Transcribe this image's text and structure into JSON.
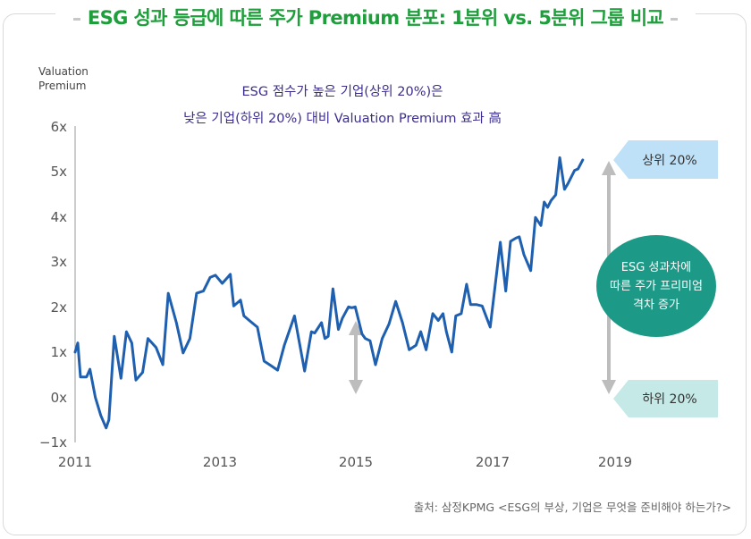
{
  "title": "ESG 성과 등급에 따른 주가 Premium 분포: 1분위 vs. 5분위 그룹 비교",
  "chart_data": {
    "type": "line",
    "title": "ESG 성과 등급에 따른 주가 Premium 분포: 1분위 vs. 5분위 그룹 비교",
    "ylabel_lines": [
      "Valuation",
      "Premium"
    ],
    "ylim": [
      -1,
      6
    ],
    "xlim": [
      2011,
      2019
    ],
    "y_ticks": [
      "−1x",
      "0x",
      "1x",
      "2x",
      "3x",
      "4x",
      "5x",
      "6x"
    ],
    "x_ticks": [
      "2011",
      "2013",
      "2015",
      "2017",
      "2019"
    ],
    "grid": false,
    "annotation_lines": [
      "ESG 점수가 높은 기업(상위 20%)은",
      "낮은 기업(하위 20%) 대비 Valuation Premium 효과 高"
    ],
    "label_top": "상위 20%",
    "label_bottom": "하위 20%",
    "circle_lines": [
      "ESG 성과차에",
      "따른 주가 프리미엄",
      "격차 증가"
    ],
    "series": [
      {
        "x": [
          2011.0,
          2011.04,
          2011.08,
          2011.17,
          2011.22,
          2011.3,
          2011.38,
          2011.46,
          2011.5,
          2011.58,
          2011.68,
          2011.76,
          2011.84,
          2011.9,
          2012.0,
          2012.08,
          2012.2,
          2012.3,
          2012.38,
          2012.5,
          2012.6,
          2012.7,
          2012.8,
          2012.9,
          2013.0,
          2013.08,
          2013.18,
          2013.3,
          2013.35,
          2013.45,
          2013.5,
          2013.58,
          2013.7,
          2013.8,
          2013.9,
          2014.0,
          2014.1,
          2014.25,
          2014.4,
          2014.5,
          2014.55,
          2014.65,
          2014.7,
          2014.75,
          2014.82,
          2014.9,
          2014.96,
          2015.05,
          2015.1,
          2015.15,
          2015.2,
          2015.25,
          2015.3,
          2015.37,
          2015.45,
          2015.55,
          2015.65,
          2015.75,
          2015.85,
          2015.95,
          2016.05,
          2016.12,
          2016.2,
          2016.3,
          2016.38,
          2016.45,
          2016.5,
          2016.58,
          2016.64,
          2016.72,
          2016.8,
          2016.86,
          2016.95,
          2017.03,
          2017.15,
          2017.3,
          2017.38,
          2017.45,
          2017.53,
          2017.58,
          2017.65,
          2017.75,
          2017.82,
          2017.9,
          2017.95,
          2018.0,
          2018.05,
          2018.12,
          2018.18,
          2018.25,
          2018.3,
          2018.4,
          2018.45,
          2018.52
        ],
        "values": [
          1.0,
          1.2,
          0.45,
          0.45,
          0.62,
          0.0,
          -0.4,
          -0.68,
          -0.5,
          1.35,
          0.42,
          1.45,
          1.2,
          0.38,
          0.55,
          1.3,
          1.1,
          0.72,
          2.3,
          1.65,
          0.98,
          1.3,
          2.3,
          2.35,
          2.65,
          2.7,
          2.52,
          2.72,
          2.02,
          2.15,
          1.8,
          1.7,
          1.55,
          0.8,
          0.7,
          0.6,
          1.15,
          1.8,
          0.58,
          1.45,
          1.42,
          1.65,
          1.3,
          1.35,
          2.4,
          1.5,
          1.75,
          2.0,
          1.98,
          2.0,
          1.7,
          1.4,
          1.3,
          1.25,
          0.72,
          1.3,
          1.62,
          2.12,
          1.65,
          1.05,
          1.15,
          1.45,
          1.05,
          1.85,
          1.7,
          1.85,
          1.45,
          1.0,
          1.8,
          1.85,
          2.5,
          2.05,
          2.05,
          2.02,
          1.55,
          3.43,
          2.35,
          3.45,
          3.52,
          3.55,
          3.15,
          2.8,
          3.98,
          3.8,
          4.32,
          4.2,
          4.35,
          4.48,
          5.3,
          4.6,
          4.72,
          5.02,
          5.05,
          5.25
        ]
      }
    ]
  },
  "source": "출처: 삼정KPMG <ESG의 부상, 기업은 무엇을 준비해야 하는가?>",
  "colors": {
    "title": "#1f9e3c",
    "line": "#1f5fb0",
    "annotation": "#3a2d8f",
    "label_top_fill": "#bfe1f7",
    "label_bottom_fill": "#c4e9e6",
    "circle_fill": "#1d9a87",
    "arrow": "#bdbdbd"
  }
}
